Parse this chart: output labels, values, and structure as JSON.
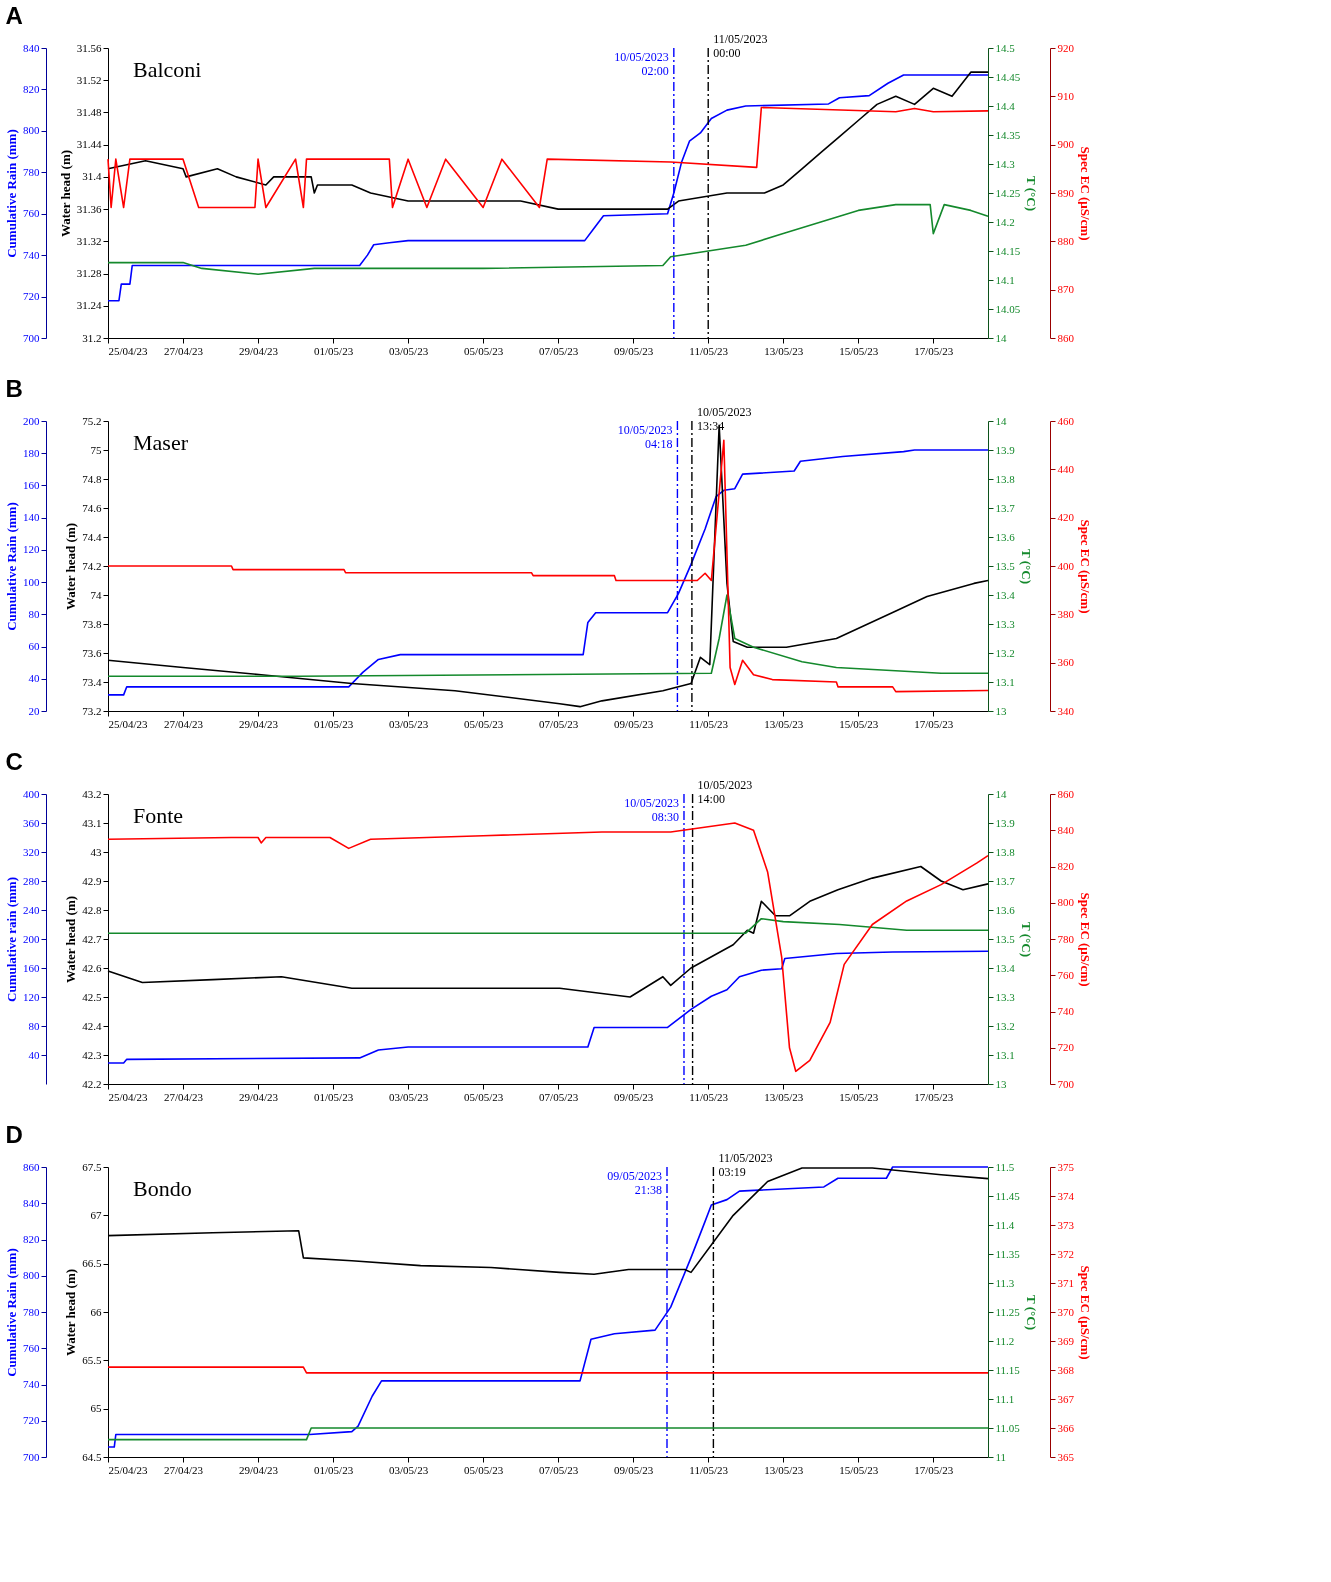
{
  "chart_data": [
    {
      "type": "line",
      "title": "A",
      "subtitle": "Balconi",
      "xlim": [
        "2023-04-25T00:00",
        "2023-05-18T11:00"
      ],
      "xticks": [
        {
          "value": "2023-04-25",
          "label": "25/04/23"
        },
        {
          "value": "2023-04-27",
          "label": "27/04/23"
        },
        {
          "value": "2023-04-29",
          "label": "29/04/23"
        },
        {
          "value": "2023-05-01",
          "label": "01/05/23"
        },
        {
          "value": "2023-05-03",
          "label": "03/05/23"
        },
        {
          "value": "2023-05-05",
          "label": "05/05/23"
        },
        {
          "value": "2023-05-07",
          "label": "07/05/23"
        },
        {
          "value": "2023-05-09",
          "label": "09/05/23"
        },
        {
          "value": "2023-05-11",
          "label": "11/05/23"
        },
        {
          "value": "2023-05-13",
          "label": "13/05/23"
        },
        {
          "value": "2023-05-15",
          "label": "15/05/23"
        },
        {
          "value": "2023-05-17",
          "label": "17/05/23"
        }
      ],
      "ylabel": "Cumulative Rain (mm)",
      "ylim": [
        700,
        840
      ],
      "yticks": [
        700,
        720,
        740,
        760,
        780,
        800,
        820,
        840
      ],
      "y2label": "Water head (m)",
      "y2lim": [
        31.2,
        31.56
      ],
      "y2ticks": [
        31.2,
        31.24,
        31.28,
        31.32,
        31.36,
        31.4,
        31.44,
        31.48,
        31.52,
        31.56
      ],
      "ref_lines": [
        {
          "axis": "x",
          "value": "2023-05-10T02:00",
          "label": "10/05/2023 02:00",
          "color": "#0000ff",
          "line_style": "dashed"
        },
        {
          "axis": "x",
          "value": "2023-05-11T00:00",
          "label": "11/05/2023 00:00",
          "color": "#000000",
          "line_style": "dashed"
        }
      ],
      "series": [
        {
          "axis": "y",
          "color": "#0000ff",
          "x": [
            "2023-04-25T00:00",
            "2023-04-25T07:00",
            "2023-04-25T08:30",
            "2023-04-25T14:00",
            "2023-04-25T15:30",
            "2023-05-01T17:00",
            "2023-05-01T22:00",
            "2023-05-02T02:00",
            "2023-05-02T12:00",
            "2023-05-03T00:00",
            "2023-05-07T17:00",
            "2023-05-07T22:00",
            "2023-05-08T05:00",
            "2023-05-09T22:00",
            "2023-05-10T02:00",
            "2023-05-10T07:00",
            "2023-05-10T12:00",
            "2023-05-10T19:00",
            "2023-05-11T02:00",
            "2023-05-11T12:00",
            "2023-05-12T00:00",
            "2023-05-14T05:00",
            "2023-05-14T12:00",
            "2023-05-15T07:00",
            "2023-05-15T19:00",
            "2023-05-16T05:00",
            "2023-05-18T11:00"
          ],
          "values": [
            718,
            718,
            726,
            726,
            735,
            735,
            740,
            745,
            746,
            747,
            747,
            752,
            759,
            760,
            770,
            785,
            795,
            799,
            806,
            810,
            812,
            813,
            816,
            817,
            823,
            827,
            827
          ]
        },
        {
          "axis": "y2",
          "color": "#000000",
          "x": [
            "2023-04-25T00:00",
            "2023-04-26T00:00",
            "2023-04-27T00:00",
            "2023-04-27T02:00",
            "2023-04-27T22:00",
            "2023-04-28T10:00",
            "2023-04-29T05:00",
            "2023-04-29T10:00",
            "2023-04-30T10:00",
            "2023-04-30T12:00",
            "2023-04-30T14:00",
            "2023-05-01T12:00",
            "2023-05-02T00:00",
            "2023-05-03T00:00",
            "2023-05-04T00:00",
            "2023-05-05T00:00",
            "2023-05-06T00:00",
            "2023-05-07T00:00",
            "2023-05-09T22:00",
            "2023-05-10T05:00",
            "2023-05-11T12:00",
            "2023-05-12T12:00",
            "2023-05-13T00:00",
            "2023-05-13T12:00",
            "2023-05-14T00:00",
            "2023-05-14T12:00",
            "2023-05-15T00:00",
            "2023-05-15T12:00",
            "2023-05-16T00:00",
            "2023-05-16T12:00",
            "2023-05-17T00:00",
            "2023-05-17T12:00",
            "2023-05-18T00:00",
            "2023-05-18T11:00"
          ],
          "values": [
            31.41,
            31.42,
            31.41,
            31.4,
            31.41,
            31.4,
            31.39,
            31.4,
            31.4,
            31.38,
            31.39,
            31.39,
            31.38,
            31.37,
            31.37,
            31.37,
            31.37,
            31.36,
            31.36,
            31.37,
            31.38,
            31.38,
            31.39,
            31.41,
            31.43,
            31.45,
            31.47,
            31.49,
            31.5,
            31.49,
            31.51,
            31.5,
            31.53,
            31.53
          ]
        }
      ]
    },
    {
      "type": "line",
      "xlim": [
        "2023-04-25T00:00",
        "2023-05-18T11:00"
      ],
      "tick_labels": "y",
      "ylabel": "T (°C)",
      "ylim": [
        14,
        14.5
      ],
      "yticks": [
        14,
        14.05,
        14.1,
        14.15,
        14.2,
        14.25,
        14.3,
        14.35,
        14.4,
        14.45,
        14.5
      ],
      "y2label": "Spec EC (μS/cm)",
      "y2lim": [
        860,
        920
      ],
      "y2ticks": [
        860,
        870,
        880,
        890,
        900,
        910,
        920
      ],
      "series": [
        {
          "axis": "y",
          "color": "#14892c",
          "x": [
            "2023-04-25T00:00",
            "2023-04-27T00:00",
            "2023-04-27T12:00",
            "2023-04-29T00:00",
            "2023-04-30T12:00",
            "2023-05-05T00:00",
            "2023-05-09T19:00",
            "2023-05-10T00:00",
            "2023-05-11T00:00",
            "2023-05-12T00:00",
            "2023-05-13T00:00",
            "2023-05-14T00:00",
            "2023-05-15T00:00",
            "2023-05-16T00:00",
            "2023-05-16T22:00",
            "2023-05-17T00:00",
            "2023-05-17T07:00",
            "2023-05-18T00:00",
            "2023-05-18T11:00"
          ],
          "values": [
            14.13,
            14.13,
            14.12,
            14.11,
            14.12,
            14.12,
            14.125,
            14.14,
            14.15,
            14.16,
            14.18,
            14.2,
            14.22,
            14.23,
            14.23,
            14.18,
            14.23,
            14.22,
            14.21
          ]
        },
        {
          "axis": "y2",
          "color": "#ff0000",
          "x": [
            "2023-04-25T00:00",
            "2023-04-25T02:00",
            "2023-04-25T05:00",
            "2023-04-25T10:00",
            "2023-04-25T14:00",
            "2023-04-27T00:00",
            "2023-04-27T10:00",
            "2023-04-28T22:00",
            "2023-04-29T00:00",
            "2023-04-29T05:00",
            "2023-04-30T00:00",
            "2023-04-30T05:00",
            "2023-04-30T07:00",
            "2023-05-02T12:00",
            "2023-05-02T14:00",
            "2023-05-03T00:00",
            "2023-05-03T12:00",
            "2023-05-04T00:00",
            "2023-05-05T00:00",
            "2023-05-05T12:00",
            "2023-05-06T12:00",
            "2023-05-06T17:00",
            "2023-05-10T00:00",
            "2023-05-12T07:00",
            "2023-05-12T10:00",
            "2023-05-16T00:00",
            "2023-05-16T12:00",
            "2023-05-17T00:00",
            "2023-05-18T11:00"
          ],
          "values": [
            897,
            887,
            897,
            887,
            897,
            897,
            887,
            887,
            897,
            887,
            897,
            887,
            897,
            897,
            887,
            897,
            887,
            897,
            887,
            897,
            887,
            897,
            896.4,
            895.3,
            907.7,
            906.8,
            907.5,
            906.8,
            907
          ]
        }
      ]
    },
    {
      "type": "line",
      "title": "B",
      "subtitle": "Maser",
      "xlim": [
        "2023-04-25T00:00",
        "2023-05-18T11:00"
      ],
      "xticks": [
        {
          "value": "2023-04-25",
          "label": "25/04/23"
        },
        {
          "value": "2023-04-27",
          "label": "27/04/23"
        },
        {
          "value": "2023-04-29",
          "label": "29/04/23"
        },
        {
          "value": "2023-05-01",
          "label": "01/05/23"
        },
        {
          "value": "2023-05-03",
          "label": "03/05/23"
        },
        {
          "value": "2023-05-05",
          "label": "05/05/23"
        },
        {
          "value": "2023-05-07",
          "label": "07/05/23"
        },
        {
          "value": "2023-05-09",
          "label": "09/05/23"
        },
        {
          "value": "2023-05-11",
          "label": "11/05/23"
        },
        {
          "value": "2023-05-13",
          "label": "13/05/23"
        },
        {
          "value": "2023-05-15",
          "label": "15/05/23"
        },
        {
          "value": "2023-05-17",
          "label": "17/05/23"
        }
      ],
      "ylabel": "Cumulative Rain (mm)",
      "ylim": [
        20,
        200
      ],
      "yticks": [
        20,
        40,
        60,
        80,
        100,
        120,
        140,
        160,
        180,
        200
      ],
      "y2label": "Water head (m)",
      "y2lim": [
        73.2,
        75.2
      ],
      "y2ticks": [
        73.2,
        73.4,
        73.6,
        73.8,
        74,
        74.2,
        74.4,
        74.6,
        74.8,
        75,
        75.2
      ],
      "ref_lines": [
        {
          "axis": "x",
          "value": "2023-05-10T04:18",
          "label": "10/05/2023 04:18",
          "color": "#0000ff",
          "line_style": "dashed"
        },
        {
          "axis": "x",
          "value": "2023-05-10T13:34",
          "label": "10/05/2023 13:34",
          "color": "#000000",
          "line_style": "dashed"
        }
      ],
      "series": [
        {
          "axis": "y",
          "color": "#0000ff",
          "x": [
            "2023-04-25T00:00",
            "2023-04-25T10:00",
            "2023-04-25T12:00",
            "2023-05-01T10:00",
            "2023-05-01T19:00",
            "2023-05-02T05:00",
            "2023-05-02T19:00",
            "2023-05-07T16:00",
            "2023-05-07T19:00",
            "2023-05-08T00:00",
            "2023-05-09T22:00",
            "2023-05-10T05:00",
            "2023-05-10T13:00",
            "2023-05-10T22:00",
            "2023-05-11T05:00",
            "2023-05-11T10:00",
            "2023-05-11T17:00",
            "2023-05-11T22:00",
            "2023-05-13T07:00",
            "2023-05-13T11:00",
            "2023-05-14T14:00",
            "2023-05-16T05:00",
            "2023-05-16T12:00",
            "2023-05-18T11:00"
          ],
          "values": [
            30,
            30,
            35,
            35,
            44,
            52,
            55,
            55,
            75,
            81,
            81,
            93,
            111,
            133,
            153,
            157,
            158,
            167,
            169,
            175,
            178,
            181,
            182,
            182
          ]
        },
        {
          "axis": "y2",
          "color": "#000000",
          "x": [
            "2023-04-25T00:00",
            "2023-04-27T00:00",
            "2023-04-29T02:00",
            "2023-05-01T12:00",
            "2023-05-04T06:00",
            "2023-05-07T01:00",
            "2023-05-07T14:00",
            "2023-05-08T04:00",
            "2023-05-09T19:00",
            "2023-05-10T13:00",
            "2023-05-10T19:00",
            "2023-05-11T01:00",
            "2023-05-11T07:00",
            "2023-05-11T12:00",
            "2023-05-11T16:00",
            "2023-05-12T01:00",
            "2023-05-13T02:00",
            "2023-05-14T10:00",
            "2023-05-15T22:00",
            "2023-05-16T20:00",
            "2023-05-18T02:00",
            "2023-05-18T11:00"
          ],
          "values": [
            73.55,
            73.5,
            73.45,
            73.39,
            73.34,
            73.25,
            73.23,
            73.27,
            73.34,
            73.39,
            73.57,
            73.52,
            75.17,
            74.08,
            73.68,
            73.64,
            73.64,
            73.7,
            73.88,
            73.99,
            74.08,
            74.1
          ]
        }
      ]
    },
    {
      "type": "line",
      "xlim": [
        "2023-04-25T00:00",
        "2023-05-18T11:00"
      ],
      "tick_labels": "y",
      "ylabel": "T (°C)",
      "ylim": [
        13,
        14
      ],
      "yticks": [
        13,
        13.1,
        13.2,
        13.3,
        13.4,
        13.5,
        13.6,
        13.7,
        13.8,
        13.9,
        14
      ],
      "y2label": "Spec EC (μS/cm)",
      "y2lim": [
        340,
        460
      ],
      "y2ticks": [
        340,
        360,
        380,
        400,
        420,
        440,
        460
      ],
      "series": [
        {
          "axis": "y",
          "color": "#14892c",
          "x": [
            "2023-04-25T00:00",
            "2023-04-30T02:00",
            "2023-05-11T02:00",
            "2023-05-11T07:00",
            "2023-05-11T12:00",
            "2023-05-11T17:00",
            "2023-05-12T05:00",
            "2023-05-13T12:00",
            "2023-05-14T10:00",
            "2023-05-17T05:00",
            "2023-05-18T11:00"
          ],
          "values": [
            13.12,
            13.12,
            13.13,
            13.25,
            13.4,
            13.25,
            13.22,
            13.17,
            13.15,
            13.13,
            13.13
          ]
        },
        {
          "axis": "y2",
          "color": "#ff0000",
          "x": [
            "2023-04-25T00:00",
            "2023-04-28T07:00",
            "2023-04-28T08:00",
            "2023-05-01T07:00",
            "2023-05-01T08:00",
            "2023-05-06T07:00",
            "2023-05-06T08:00",
            "2023-05-08T12:00",
            "2023-05-08T13:00",
            "2023-05-10T17:00",
            "2023-05-10T22:00",
            "2023-05-11T02:00",
            "2023-05-11T10:00",
            "2023-05-11T14:00",
            "2023-05-11T17:00",
            "2023-05-11T22:00",
            "2023-05-12T05:00",
            "2023-05-12T17:00",
            "2023-05-14T10:00",
            "2023-05-14T11:00",
            "2023-05-15T22:00",
            "2023-05-16T00:00",
            "2023-05-18T11:00"
          ],
          "values": [
            400,
            400,
            398.5,
            398.5,
            397.2,
            397.2,
            396,
            396,
            394,
            394,
            397,
            394,
            452,
            358,
            351,
            361,
            355,
            353,
            352,
            350,
            350,
            348,
            348.5
          ]
        }
      ]
    },
    {
      "type": "line",
      "title": "C",
      "subtitle": "Fonte",
      "xlim": [
        "2023-04-25T00:00",
        "2023-05-18T11:00"
      ],
      "xticks": [
        {
          "value": "2023-04-25",
          "label": "25/04/23"
        },
        {
          "value": "2023-04-27",
          "label": "27/04/23"
        },
        {
          "value": "2023-04-29",
          "label": "29/04/23"
        },
        {
          "value": "2023-05-01",
          "label": "01/05/23"
        },
        {
          "value": "2023-05-03",
          "label": "03/05/23"
        },
        {
          "value": "2023-05-05",
          "label": "05/05/23"
        },
        {
          "value": "2023-05-07",
          "label": "07/05/23"
        },
        {
          "value": "2023-05-09",
          "label": "09/05/23"
        },
        {
          "value": "2023-05-11",
          "label": "11/05/23"
        },
        {
          "value": "2023-05-13",
          "label": "13/05/23"
        },
        {
          "value": "2023-05-15",
          "label": "15/05/23"
        },
        {
          "value": "2023-05-17",
          "label": "17/05/23"
        }
      ],
      "ylabel": "Cumulative rain (mm)",
      "ylim": [
        0,
        400
      ],
      "yticks": [
        40,
        80,
        120,
        160,
        200,
        240,
        280,
        320,
        360,
        400
      ],
      "y2label": "Water head (m)",
      "y2lim": [
        42.2,
        43.2
      ],
      "y2ticks": [
        42.2,
        42.3,
        42.4,
        42.5,
        42.6,
        42.7,
        42.8,
        42.9,
        43,
        43.1,
        43.2
      ],
      "ref_lines": [
        {
          "axis": "x",
          "value": "2023-05-10T08:30",
          "label": "10/05/2023 08:30",
          "color": "#0000ff",
          "line_style": "dashed"
        },
        {
          "axis": "x",
          "value": "2023-05-10T14:00",
          "label": "10/05/2023 14:00",
          "color": "#000000",
          "line_style": "dashed"
        }
      ],
      "series": [
        {
          "axis": "y",
          "color": "#0000ff",
          "x": [
            "2023-04-25T00:00",
            "2023-04-25T10:00",
            "2023-04-25T12:00",
            "2023-05-01T17:00",
            "2023-05-02T05:00",
            "2023-05-03T00:00",
            "2023-05-07T19:00",
            "2023-05-07T23:00",
            "2023-05-09T22:00",
            "2023-05-10T13:00",
            "2023-05-11T02:00",
            "2023-05-11T12:00",
            "2023-05-11T20:00",
            "2023-05-12T10:00",
            "2023-05-12T23:00",
            "2023-05-13T01:00",
            "2023-05-14T10:00",
            "2023-05-15T22:00",
            "2023-05-18T11:00"
          ],
          "values": [
            29,
            29,
            34,
            36,
            47,
            51,
            51,
            78,
            78,
            103,
            121,
            130,
            148,
            157,
            159,
            173,
            180,
            182,
            183
          ]
        },
        {
          "axis": "y2",
          "color": "#000000",
          "x": [
            "2023-04-25T00:00",
            "2023-04-25T22:00",
            "2023-04-27T19:00",
            "2023-04-29T15:00",
            "2023-05-01T12:00",
            "2023-05-04T06:00",
            "2023-05-07T01:00",
            "2023-05-08T22:00",
            "2023-05-09T19:00",
            "2023-05-10T00:00",
            "2023-05-10T13:00",
            "2023-05-11T16:00",
            "2023-05-12T01:00",
            "2023-05-12T05:00",
            "2023-05-12T10:00",
            "2023-05-12T19:00",
            "2023-05-13T04:00",
            "2023-05-13T17:00",
            "2023-05-14T11:00",
            "2023-05-15T09:00",
            "2023-05-16T16:00",
            "2023-05-17T05:00",
            "2023-05-17T19:00",
            "2023-05-18T11:00"
          ],
          "values": [
            42.59,
            42.55,
            42.56,
            42.57,
            42.53,
            42.53,
            42.53,
            42.5,
            42.57,
            42.54,
            42.6,
            42.68,
            42.73,
            42.72,
            42.83,
            42.78,
            42.78,
            42.83,
            42.87,
            42.91,
            42.95,
            42.9,
            42.87,
            42.89
          ]
        }
      ]
    },
    {
      "type": "line",
      "xlim": [
        "2023-04-25T00:00",
        "2023-05-18T11:00"
      ],
      "tick_labels": "y",
      "ylabel": "T (°C)",
      "ylim": [
        13,
        14
      ],
      "yticks": [
        13,
        13.1,
        13.2,
        13.3,
        13.4,
        13.5,
        13.6,
        13.7,
        13.8,
        13.9,
        14
      ],
      "y2label": "Spec EC (μS/cm)",
      "y2lim": [
        700,
        860
      ],
      "y2ticks": [
        700,
        720,
        740,
        760,
        780,
        800,
        820,
        840,
        860
      ],
      "series": [
        {
          "axis": "y",
          "color": "#14892c",
          "x": [
            "2023-04-25T00:00",
            "2023-05-12T00:00",
            "2023-05-12T10:00",
            "2023-05-13T00:00",
            "2023-05-14T12:00",
            "2023-05-16T07:00",
            "2023-05-18T11:00"
          ],
          "values": [
            13.52,
            13.52,
            13.57,
            13.56,
            13.55,
            13.53,
            13.53
          ]
        },
        {
          "axis": "y2",
          "color": "#ff0000",
          "x": [
            "2023-04-25T00:00",
            "2023-04-28T07:00",
            "2023-04-29T00:00",
            "2023-04-29T02:00",
            "2023-04-29T05:00",
            "2023-04-30T22:00",
            "2023-05-01T10:00",
            "2023-05-02T00:00",
            "2023-05-05T00:00",
            "2023-05-08T04:00",
            "2023-05-10T00:00",
            "2023-05-11T17:00",
            "2023-05-12T05:00",
            "2023-05-12T14:00",
            "2023-05-12T23:00",
            "2023-05-13T04:00",
            "2023-05-13T08:00",
            "2023-05-13T17:00",
            "2023-05-14T06:00",
            "2023-05-14T15:00",
            "2023-05-15T09:00",
            "2023-05-16T07:00",
            "2023-05-17T05:00",
            "2023-05-18T04:00",
            "2023-05-18T11:00"
          ],
          "values": [
            835,
            836,
            836,
            833,
            836,
            836,
            830,
            835,
            837,
            839,
            839,
            844,
            840,
            817,
            770,
            720,
            707,
            713,
            734,
            766,
            788,
            801,
            810,
            822,
            826
          ]
        }
      ]
    },
    {
      "type": "line",
      "title": "D",
      "subtitle": "Bondo",
      "xlim": [
        "2023-04-25T00:00",
        "2023-05-18T11:00"
      ],
      "xticks": [
        {
          "value": "2023-04-25",
          "label": "25/04/23"
        },
        {
          "value": "2023-04-27",
          "label": "27/04/23"
        },
        {
          "value": "2023-04-29",
          "label": "29/04/23"
        },
        {
          "value": "2023-05-01",
          "label": "01/05/23"
        },
        {
          "value": "2023-05-03",
          "label": "03/05/23"
        },
        {
          "value": "2023-05-05",
          "label": "05/05/23"
        },
        {
          "value": "2023-05-07",
          "label": "07/05/23"
        },
        {
          "value": "2023-05-09",
          "label": "09/05/23"
        },
        {
          "value": "2023-05-11",
          "label": "11/05/23"
        },
        {
          "value": "2023-05-13",
          "label": "13/05/23"
        },
        {
          "value": "2023-05-15",
          "label": "15/05/23"
        },
        {
          "value": "2023-05-17",
          "label": "17/05/23"
        }
      ],
      "ylabel": "Cumulative Rain (mm)",
      "ylim": [
        700,
        860
      ],
      "yticks": [
        700,
        720,
        740,
        760,
        780,
        800,
        820,
        840,
        860
      ],
      "y2label": "Water head (m)",
      "y2lim": [
        64.5,
        67.5
      ],
      "y2ticks": [
        64.5,
        65,
        65.5,
        66,
        66.5,
        67,
        67.5
      ],
      "ref_lines": [
        {
          "axis": "x",
          "value": "2023-05-09T21:38",
          "label": "09/05/2023 21:38",
          "color": "#0000ff",
          "line_style": "dashed"
        },
        {
          "axis": "x",
          "value": "2023-05-11T03:19",
          "label": "11/05/2023 03:19",
          "color": "#000000",
          "line_style": "dashed"
        }
      ],
      "series": [
        {
          "axis": "y",
          "color": "#0000ff",
          "x": [
            "2023-04-25T00:00",
            "2023-04-25T04:00",
            "2023-04-25T05:00",
            "2023-04-30T09:00",
            "2023-05-01T12:00",
            "2023-05-01T16:00",
            "2023-05-02T01:00",
            "2023-05-02T07:00",
            "2023-05-07T14:00",
            "2023-05-07T21:00",
            "2023-05-08T12:00",
            "2023-05-09T14:00",
            "2023-05-10T00:00",
            "2023-05-10T13:00",
            "2023-05-10T22:00",
            "2023-05-11T02:00",
            "2023-05-11T12:00",
            "2023-05-11T20:00",
            "2023-05-14T02:00",
            "2023-05-14T11:00",
            "2023-05-15T18:00",
            "2023-05-15T22:00",
            "2023-05-18T11:00"
          ],
          "values": [
            705.5,
            705.5,
            712.4,
            712.4,
            714,
            717,
            733.5,
            742,
            742,
            765,
            768,
            770,
            782.7,
            810,
            830,
            839,
            842,
            846.7,
            849,
            853.8,
            853.8,
            860,
            860
          ]
        },
        {
          "axis": "y2",
          "color": "#000000",
          "x": [
            "2023-04-25T00:00",
            "2023-04-27T19:00",
            "2023-04-30T02:00",
            "2023-04-30T05:00",
            "2023-05-01T12:00",
            "2023-05-03T08:00",
            "2023-05-05T05:00",
            "2023-05-07T01:00",
            "2023-05-07T23:00",
            "2023-05-08T21:00",
            "2023-05-10T09:00",
            "2023-05-10T13:00",
            "2023-05-11T16:00",
            "2023-05-12T14:00",
            "2023-05-13T12:00",
            "2023-05-15T09:00",
            "2023-05-17T05:00",
            "2023-05-18T11:00"
          ],
          "values": [
            66.79,
            66.82,
            66.84,
            66.56,
            66.53,
            66.48,
            66.46,
            66.41,
            66.39,
            66.44,
            66.44,
            66.41,
            67.0,
            67.35,
            67.49,
            67.49,
            67.42,
            67.38
          ]
        }
      ]
    },
    {
      "type": "line",
      "xlim": [
        "2023-04-25T00:00",
        "2023-05-18T11:00"
      ],
      "tick_labels": "y",
      "ylabel": "T (°C)",
      "ylim": [
        11,
        11.5
      ],
      "yticks": [
        11,
        11.05,
        11.1,
        11.15,
        11.2,
        11.25,
        11.3,
        11.35,
        11.4,
        11.45,
        11.5
      ],
      "y2label": "Spec EC (μS/cm)",
      "y2lim": [
        365,
        375
      ],
      "y2ticks": [
        365,
        366,
        367,
        368,
        369,
        370,
        371,
        372,
        373,
        374,
        375
      ],
      "series": [
        {
          "axis": "y",
          "color": "#14892c",
          "x": [
            "2023-04-25T00:00",
            "2023-04-30T07:00",
            "2023-04-30T10:00",
            "2023-05-18T11:00"
          ],
          "values": [
            11.03,
            11.03,
            11.05,
            11.05
          ]
        },
        {
          "axis": "y2",
          "color": "#ff0000",
          "x": [
            "2023-04-25T00:00",
            "2023-04-30T05:00",
            "2023-04-30T07:00",
            "2023-05-18T11:00"
          ],
          "values": [
            368.1,
            368.1,
            367.9,
            367.9
          ]
        }
      ]
    }
  ]
}
